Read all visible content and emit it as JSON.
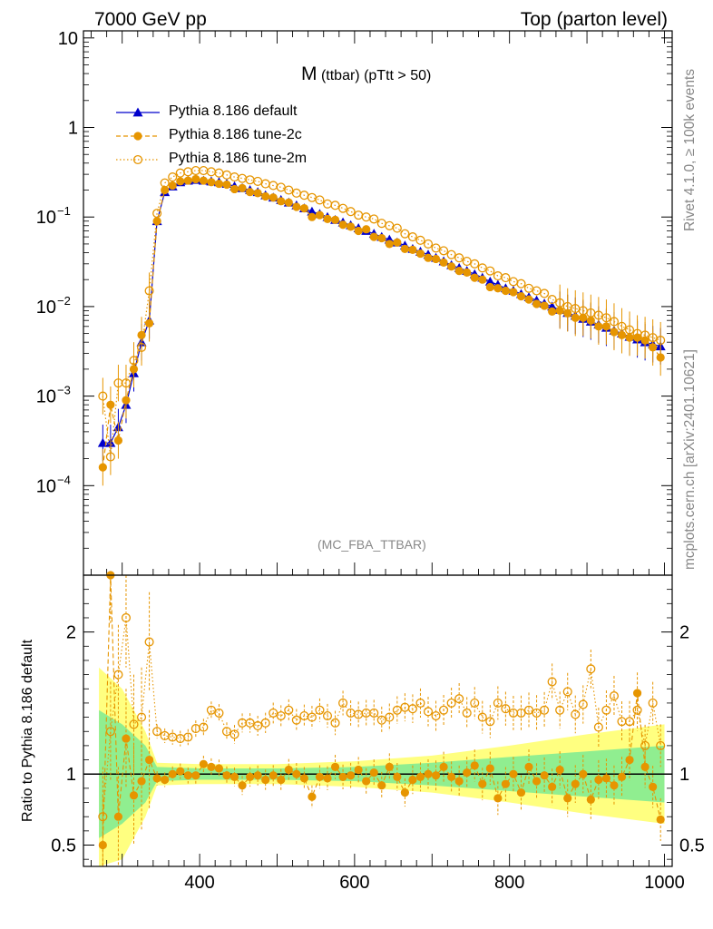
{
  "header": {
    "energy_label": "7000 GeV pp",
    "process_label": "Top (parton level)"
  },
  "side_labels": {
    "rivet_info": "Rivet 4.1.0, ≥ 100k events",
    "source_info": "mcplots.cern.ch [arXiv:2401.10621]"
  },
  "plot_title": {
    "main": "M",
    "sub": "(ttbar) (pTtt > 50)"
  },
  "analysis_label": "(MC_FBA_TTBAR)",
  "colors": {
    "default": "#0000cc",
    "tune2c": "#e69500",
    "tune2m": "#e69500",
    "band_yellow": "#ffff80",
    "band_green": "#90ee90"
  },
  "chart_data": [
    {
      "type": "line",
      "title": "M (ttbar) (pTtt > 50)",
      "xlabel": "",
      "ylabel": "",
      "yscale": "log",
      "xlim": [
        250,
        1010
      ],
      "ylim": [
        1e-05,
        12
      ],
      "y_tick_labels": [
        "10^-4",
        "10^-3",
        "10^-2",
        "10^-1",
        "1",
        "10"
      ],
      "x": [
        275,
        285,
        295,
        305,
        315,
        325,
        335,
        345,
        355,
        365,
        375,
        385,
        395,
        405,
        415,
        425,
        435,
        445,
        455,
        465,
        475,
        485,
        495,
        505,
        515,
        525,
        535,
        545,
        555,
        565,
        575,
        585,
        595,
        605,
        615,
        625,
        635,
        645,
        655,
        665,
        675,
        685,
        695,
        705,
        715,
        725,
        735,
        745,
        755,
        765,
        775,
        785,
        795,
        805,
        815,
        825,
        835,
        845,
        855,
        865,
        875,
        885,
        895,
        905,
        915,
        925,
        935,
        945,
        955,
        965,
        975,
        985,
        995
      ],
      "series": [
        {
          "name": "Pythia 8.186 default",
          "marker": "filled-triangle",
          "values": [
            0.0003,
            0.0003,
            0.00045,
            0.0008,
            0.0018,
            0.004,
            0.007,
            0.09,
            0.19,
            0.22,
            0.245,
            0.255,
            0.26,
            0.255,
            0.25,
            0.245,
            0.235,
            0.22,
            0.21,
            0.2,
            0.19,
            0.175,
            0.165,
            0.155,
            0.145,
            0.135,
            0.125,
            0.115,
            0.108,
            0.1,
            0.093,
            0.087,
            0.081,
            0.075,
            0.07,
            0.065,
            0.06,
            0.056,
            0.052,
            0.048,
            0.044,
            0.041,
            0.038,
            0.035,
            0.032,
            0.029,
            0.027,
            0.025,
            0.023,
            0.021,
            0.019,
            0.0175,
            0.016,
            0.015,
            0.0138,
            0.0127,
            0.0117,
            0.0108,
            0.01,
            0.0092,
            0.0085,
            0.0079,
            0.0073,
            0.0068,
            0.0063,
            0.0058,
            0.0054,
            0.005,
            0.0046,
            0.0043,
            0.004,
            0.0038,
            0.0036
          ]
        },
        {
          "name": "Pythia 8.186 tune-2c",
          "marker": "filled-circle",
          "values": [
            0.00016,
            0.0008,
            0.00032,
            0.0009,
            0.002,
            0.0048,
            0.0065,
            0.09,
            0.2,
            0.225,
            0.25,
            0.255,
            0.265,
            0.255,
            0.245,
            0.235,
            0.23,
            0.205,
            0.21,
            0.19,
            0.185,
            0.17,
            0.165,
            0.15,
            0.145,
            0.13,
            0.125,
            0.1,
            0.105,
            0.095,
            0.093,
            0.082,
            0.078,
            0.07,
            0.073,
            0.06,
            0.058,
            0.05,
            0.052,
            0.044,
            0.043,
            0.039,
            0.035,
            0.034,
            0.031,
            0.028,
            0.025,
            0.024,
            0.021,
            0.02,
            0.0165,
            0.016,
            0.015,
            0.0145,
            0.013,
            0.012,
            0.0107,
            0.0102,
            0.0088,
            0.009,
            0.0084,
            0.0075,
            0.0075,
            0.007,
            0.006,
            0.006,
            0.0052,
            0.0048,
            0.0045,
            0.0045,
            0.0042,
            0.0035,
            0.0027
          ]
        },
        {
          "name": "Pythia 8.186 tune-2m",
          "marker": "open-circle",
          "values": [
            0.001,
            0.00021,
            0.0014,
            0.0014,
            0.0025,
            0.0035,
            0.015,
            0.11,
            0.24,
            0.28,
            0.31,
            0.32,
            0.33,
            0.33,
            0.32,
            0.31,
            0.295,
            0.28,
            0.27,
            0.26,
            0.25,
            0.235,
            0.225,
            0.215,
            0.2,
            0.185,
            0.175,
            0.165,
            0.155,
            0.14,
            0.135,
            0.125,
            0.115,
            0.105,
            0.1,
            0.095,
            0.085,
            0.08,
            0.075,
            0.065,
            0.06,
            0.055,
            0.05,
            0.045,
            0.042,
            0.038,
            0.035,
            0.032,
            0.03,
            0.027,
            0.025,
            0.022,
            0.021,
            0.019,
            0.018,
            0.016,
            0.015,
            0.014,
            0.012,
            0.011,
            0.01,
            0.0095,
            0.009,
            0.0085,
            0.008,
            0.0075,
            0.0068,
            0.006,
            0.0055,
            0.005,
            0.0048,
            0.0045,
            0.0042
          ]
        }
      ]
    },
    {
      "type": "line",
      "title": "",
      "xlabel": "",
      "ylabel": "Ratio to Pythia 8.186 default",
      "xlim": [
        250,
        1010
      ],
      "ylim": [
        0.35,
        2.4
      ],
      "x_tick_labels": [
        "400",
        "600",
        "800",
        "1000"
      ],
      "y_tick_labels": [
        "0.5",
        "1",
        "2"
      ],
      "band_x": [
        270,
        300,
        330,
        345,
        400,
        500,
        600,
        700,
        800,
        900,
        1000
      ],
      "band_yellow_halfwidth": [
        0.75,
        0.6,
        0.3,
        0.08,
        0.07,
        0.07,
        0.09,
        0.13,
        0.2,
        0.28,
        0.35
      ],
      "band_green_halfwidth": [
        0.45,
        0.35,
        0.2,
        0.05,
        0.04,
        0.04,
        0.05,
        0.08,
        0.12,
        0.16,
        0.2
      ],
      "x": [
        275,
        285,
        295,
        305,
        315,
        325,
        335,
        345,
        355,
        365,
        375,
        385,
        395,
        405,
        415,
        425,
        435,
        445,
        455,
        465,
        475,
        485,
        495,
        505,
        515,
        525,
        535,
        545,
        555,
        565,
        575,
        585,
        595,
        605,
        615,
        625,
        635,
        645,
        655,
        665,
        675,
        685,
        695,
        705,
        715,
        725,
        735,
        745,
        755,
        765,
        775,
        785,
        795,
        805,
        815,
        825,
        835,
        845,
        855,
        865,
        875,
        885,
        895,
        905,
        915,
        925,
        935,
        945,
        955,
        965,
        975,
        985,
        995
      ],
      "series": [
        {
          "name": "Pythia 8.186 tune-2c",
          "marker": "filled-circle",
          "values": [
            0.5,
            2.4,
            0.7,
            1.25,
            0.85,
            0.95,
            1.1,
            0.97,
            0.96,
            1.0,
            1.02,
            0.99,
            0.99,
            1.07,
            1.05,
            1.04,
            0.99,
            0.98,
            0.92,
            0.98,
            0.99,
            0.96,
            0.99,
            0.96,
            1.03,
            1.0,
            0.97,
            0.84,
            0.98,
            0.97,
            1.05,
            0.98,
            0.99,
            1.03,
            0.95,
            1.01,
            0.92,
            1.05,
            0.98,
            0.87,
            0.96,
            0.98,
            1.0,
            0.99,
            1.05,
            0.98,
            0.95,
            1.01,
            1.06,
            0.93,
            1.04,
            0.83,
            0.93,
            1.0,
            0.87,
            1.05,
            0.95,
            0.99,
            0.91,
            1.03,
            0.83,
            0.93,
            1.0,
            0.82,
            0.96,
            0.97,
            0.92,
            0.98,
            1.1,
            1.57,
            1.05,
            0.91,
            0.68
          ]
        },
        {
          "name": "Pythia 8.186 tune-2m",
          "marker": "open-circle",
          "values": [
            0.7,
            1.3,
            1.7,
            2.1,
            1.35,
            1.4,
            1.93,
            1.3,
            1.27,
            1.26,
            1.25,
            1.26,
            1.32,
            1.33,
            1.45,
            1.43,
            1.3,
            1.28,
            1.36,
            1.36,
            1.34,
            1.36,
            1.43,
            1.41,
            1.45,
            1.38,
            1.41,
            1.4,
            1.45,
            1.41,
            1.36,
            1.5,
            1.43,
            1.42,
            1.43,
            1.43,
            1.38,
            1.4,
            1.45,
            1.47,
            1.46,
            1.5,
            1.44,
            1.41,
            1.45,
            1.5,
            1.53,
            1.43,
            1.5,
            1.4,
            1.37,
            1.5,
            1.46,
            1.43,
            1.43,
            1.45,
            1.43,
            1.45,
            1.65,
            1.45,
            1.58,
            1.42,
            1.49,
            1.74,
            1.33,
            1.45,
            1.55,
            1.37,
            1.37,
            1.45,
            1.2,
            1.5,
            1.2
          ]
        }
      ]
    }
  ],
  "legend": [
    {
      "label": "Pythia 8.186 default",
      "style": "solid-blue-triangle"
    },
    {
      "label": "Pythia 8.186 tune-2c",
      "style": "dashed-orange-filled-circle"
    },
    {
      "label": "Pythia 8.186 tune-2m",
      "style": "dotted-orange-open-circle"
    }
  ]
}
